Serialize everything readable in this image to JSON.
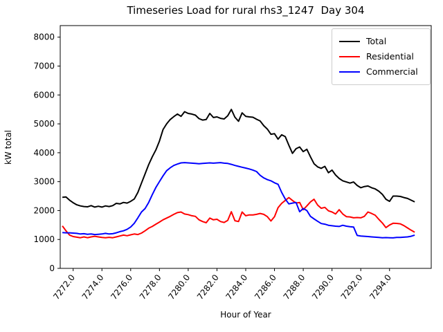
{
  "chart_data": {
    "type": "line",
    "title": "Timeseries Load for rural rhs3_1247  Day 304",
    "xlabel": "Hour of Year",
    "ylabel": "kW total",
    "grid": false,
    "legend_position": "upper right",
    "xlim": [
      7271.1,
      7296.9
    ],
    "ylim": [
      0,
      8400
    ],
    "x_ticks": [
      7272,
      7274,
      7276,
      7278,
      7280,
      7282,
      7284,
      7286,
      7288,
      7290,
      7292,
      7294
    ],
    "x_tick_labels": [
      "7272.0",
      "7274.0",
      "7276.0",
      "7278.0",
      "7280.0",
      "7282.0",
      "7284.0",
      "7286.0",
      "7288.0",
      "7290.0",
      "7292.0",
      "7294.0"
    ],
    "y_ticks": [
      0,
      1000,
      2000,
      3000,
      4000,
      5000,
      6000,
      7000,
      8000
    ],
    "x_start": 7271.25,
    "x_step": 0.25,
    "n_points": 99,
    "series": [
      {
        "name": "Total",
        "color": "#000000",
        "values": [
          2460,
          2470,
          2360,
          2270,
          2200,
          2160,
          2140,
          2130,
          2170,
          2120,
          2150,
          2120,
          2160,
          2140,
          2170,
          2250,
          2230,
          2280,
          2260,
          2320,
          2400,
          2630,
          2950,
          3270,
          3590,
          3860,
          4100,
          4400,
          4800,
          5000,
          5150,
          5250,
          5340,
          5260,
          5420,
          5360,
          5340,
          5300,
          5180,
          5130,
          5150,
          5360,
          5220,
          5240,
          5190,
          5170,
          5280,
          5500,
          5230,
          5090,
          5380,
          5260,
          5240,
          5230,
          5160,
          5100,
          4940,
          4820,
          4640,
          4660,
          4470,
          4620,
          4560,
          4260,
          3980,
          4140,
          4200,
          4040,
          4120,
          3860,
          3620,
          3510,
          3460,
          3530,
          3310,
          3400,
          3230,
          3110,
          3030,
          2990,
          2950,
          2990,
          2870,
          2790,
          2830,
          2850,
          2790,
          2750,
          2670,
          2560,
          2390,
          2320,
          2500,
          2500,
          2490,
          2450,
          2420,
          2360,
          2300
        ]
      },
      {
        "name": "Residential",
        "color": "#ff0000",
        "values": [
          1470,
          1300,
          1150,
          1100,
          1080,
          1060,
          1090,
          1060,
          1090,
          1110,
          1090,
          1070,
          1060,
          1075,
          1060,
          1090,
          1120,
          1150,
          1130,
          1160,
          1190,
          1170,
          1220,
          1300,
          1390,
          1450,
          1530,
          1600,
          1680,
          1740,
          1800,
          1870,
          1930,
          1950,
          1880,
          1860,
          1820,
          1800,
          1680,
          1620,
          1580,
          1740,
          1680,
          1700,
          1620,
          1590,
          1660,
          1960,
          1650,
          1620,
          1950,
          1820,
          1850,
          1850,
          1870,
          1900,
          1870,
          1790,
          1640,
          1790,
          2100,
          2250,
          2350,
          2450,
          2350,
          2260,
          2280,
          2030,
          2160,
          2300,
          2390,
          2190,
          2080,
          2110,
          1990,
          1950,
          1880,
          2030,
          1880,
          1790,
          1780,
          1750,
          1760,
          1750,
          1800,
          1950,
          1900,
          1840,
          1700,
          1570,
          1410,
          1500,
          1560,
          1555,
          1540,
          1480,
          1400,
          1320,
          1250
        ]
      },
      {
        "name": "Commercial",
        "color": "#0000ff",
        "values": [
          1240,
          1230,
          1230,
          1220,
          1210,
          1190,
          1200,
          1180,
          1190,
          1170,
          1180,
          1190,
          1210,
          1190,
          1200,
          1230,
          1270,
          1300,
          1350,
          1430,
          1560,
          1750,
          1950,
          2070,
          2280,
          2550,
          2800,
          3000,
          3200,
          3380,
          3480,
          3560,
          3610,
          3650,
          3660,
          3650,
          3640,
          3630,
          3620,
          3630,
          3640,
          3650,
          3640,
          3650,
          3660,
          3640,
          3630,
          3600,
          3560,
          3530,
          3500,
          3470,
          3440,
          3400,
          3350,
          3220,
          3130,
          3070,
          3030,
          2960,
          2910,
          2630,
          2400,
          2230,
          2260,
          2280,
          1960,
          2070,
          2000,
          1800,
          1710,
          1630,
          1550,
          1530,
          1490,
          1475,
          1460,
          1450,
          1490,
          1460,
          1440,
          1430,
          1140,
          1120,
          1110,
          1100,
          1090,
          1080,
          1070,
          1060,
          1065,
          1060,
          1055,
          1070,
          1070,
          1080,
          1090,
          1110,
          1150
        ]
      }
    ]
  }
}
